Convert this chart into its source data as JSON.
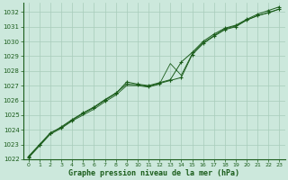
{
  "xlabel": "Graphe pression niveau de la mer (hPa)",
  "background_color": "#cce8dc",
  "grid_color": "#a8ccba",
  "line_color": "#1a5c1a",
  "ylim": [
    1022,
    1032.6
  ],
  "xlim": [
    -0.5,
    23.5
  ],
  "yticks": [
    1022,
    1023,
    1024,
    1025,
    1026,
    1027,
    1028,
    1029,
    1030,
    1031,
    1032
  ],
  "xticks": [
    0,
    1,
    2,
    3,
    4,
    5,
    6,
    7,
    8,
    9,
    10,
    11,
    12,
    13,
    14,
    15,
    16,
    17,
    18,
    19,
    20,
    21,
    22,
    23
  ],
  "series1_x": [
    0,
    1,
    2,
    3,
    4,
    5,
    6,
    7,
    8,
    9,
    10,
    11,
    12,
    13,
    14,
    15,
    16,
    17,
    18,
    19,
    20,
    21,
    22,
    23
  ],
  "series1_y": [
    1022.2,
    1023.0,
    1023.8,
    1024.15,
    1024.65,
    1025.1,
    1025.5,
    1026.0,
    1026.45,
    1027.25,
    1027.1,
    1027.0,
    1027.2,
    1027.4,
    1028.6,
    1029.25,
    1030.0,
    1030.5,
    1030.9,
    1031.1,
    1031.5,
    1031.85,
    1032.1,
    1032.35
  ],
  "series2_x": [
    0,
    1,
    2,
    3,
    4,
    5,
    6,
    7,
    8,
    9,
    10,
    11,
    12,
    13,
    14,
    15,
    16,
    17,
    18,
    19,
    20,
    21,
    22,
    23
  ],
  "series2_y": [
    1022.15,
    1022.95,
    1023.75,
    1024.2,
    1024.7,
    1025.15,
    1025.55,
    1026.05,
    1026.5,
    1027.1,
    1027.05,
    1026.95,
    1027.15,
    1027.35,
    1027.55,
    1029.1,
    1029.85,
    1030.35,
    1030.8,
    1031.0,
    1031.45,
    1031.75,
    1031.95,
    1032.2
  ],
  "series3_x": [
    0,
    1,
    2,
    3,
    4,
    5,
    6,
    7,
    8,
    9,
    10,
    11,
    12,
    13,
    14,
    15,
    16,
    17,
    18,
    19,
    20,
    21,
    22,
    23
  ],
  "series3_y": [
    1022.1,
    1022.9,
    1023.7,
    1024.1,
    1024.6,
    1025.0,
    1025.4,
    1025.9,
    1026.35,
    1027.0,
    1027.0,
    1026.9,
    1027.1,
    1028.5,
    1027.7,
    1029.15,
    1029.9,
    1030.4,
    1030.85,
    1031.05,
    1031.45,
    1031.75,
    1031.95,
    1032.2
  ]
}
